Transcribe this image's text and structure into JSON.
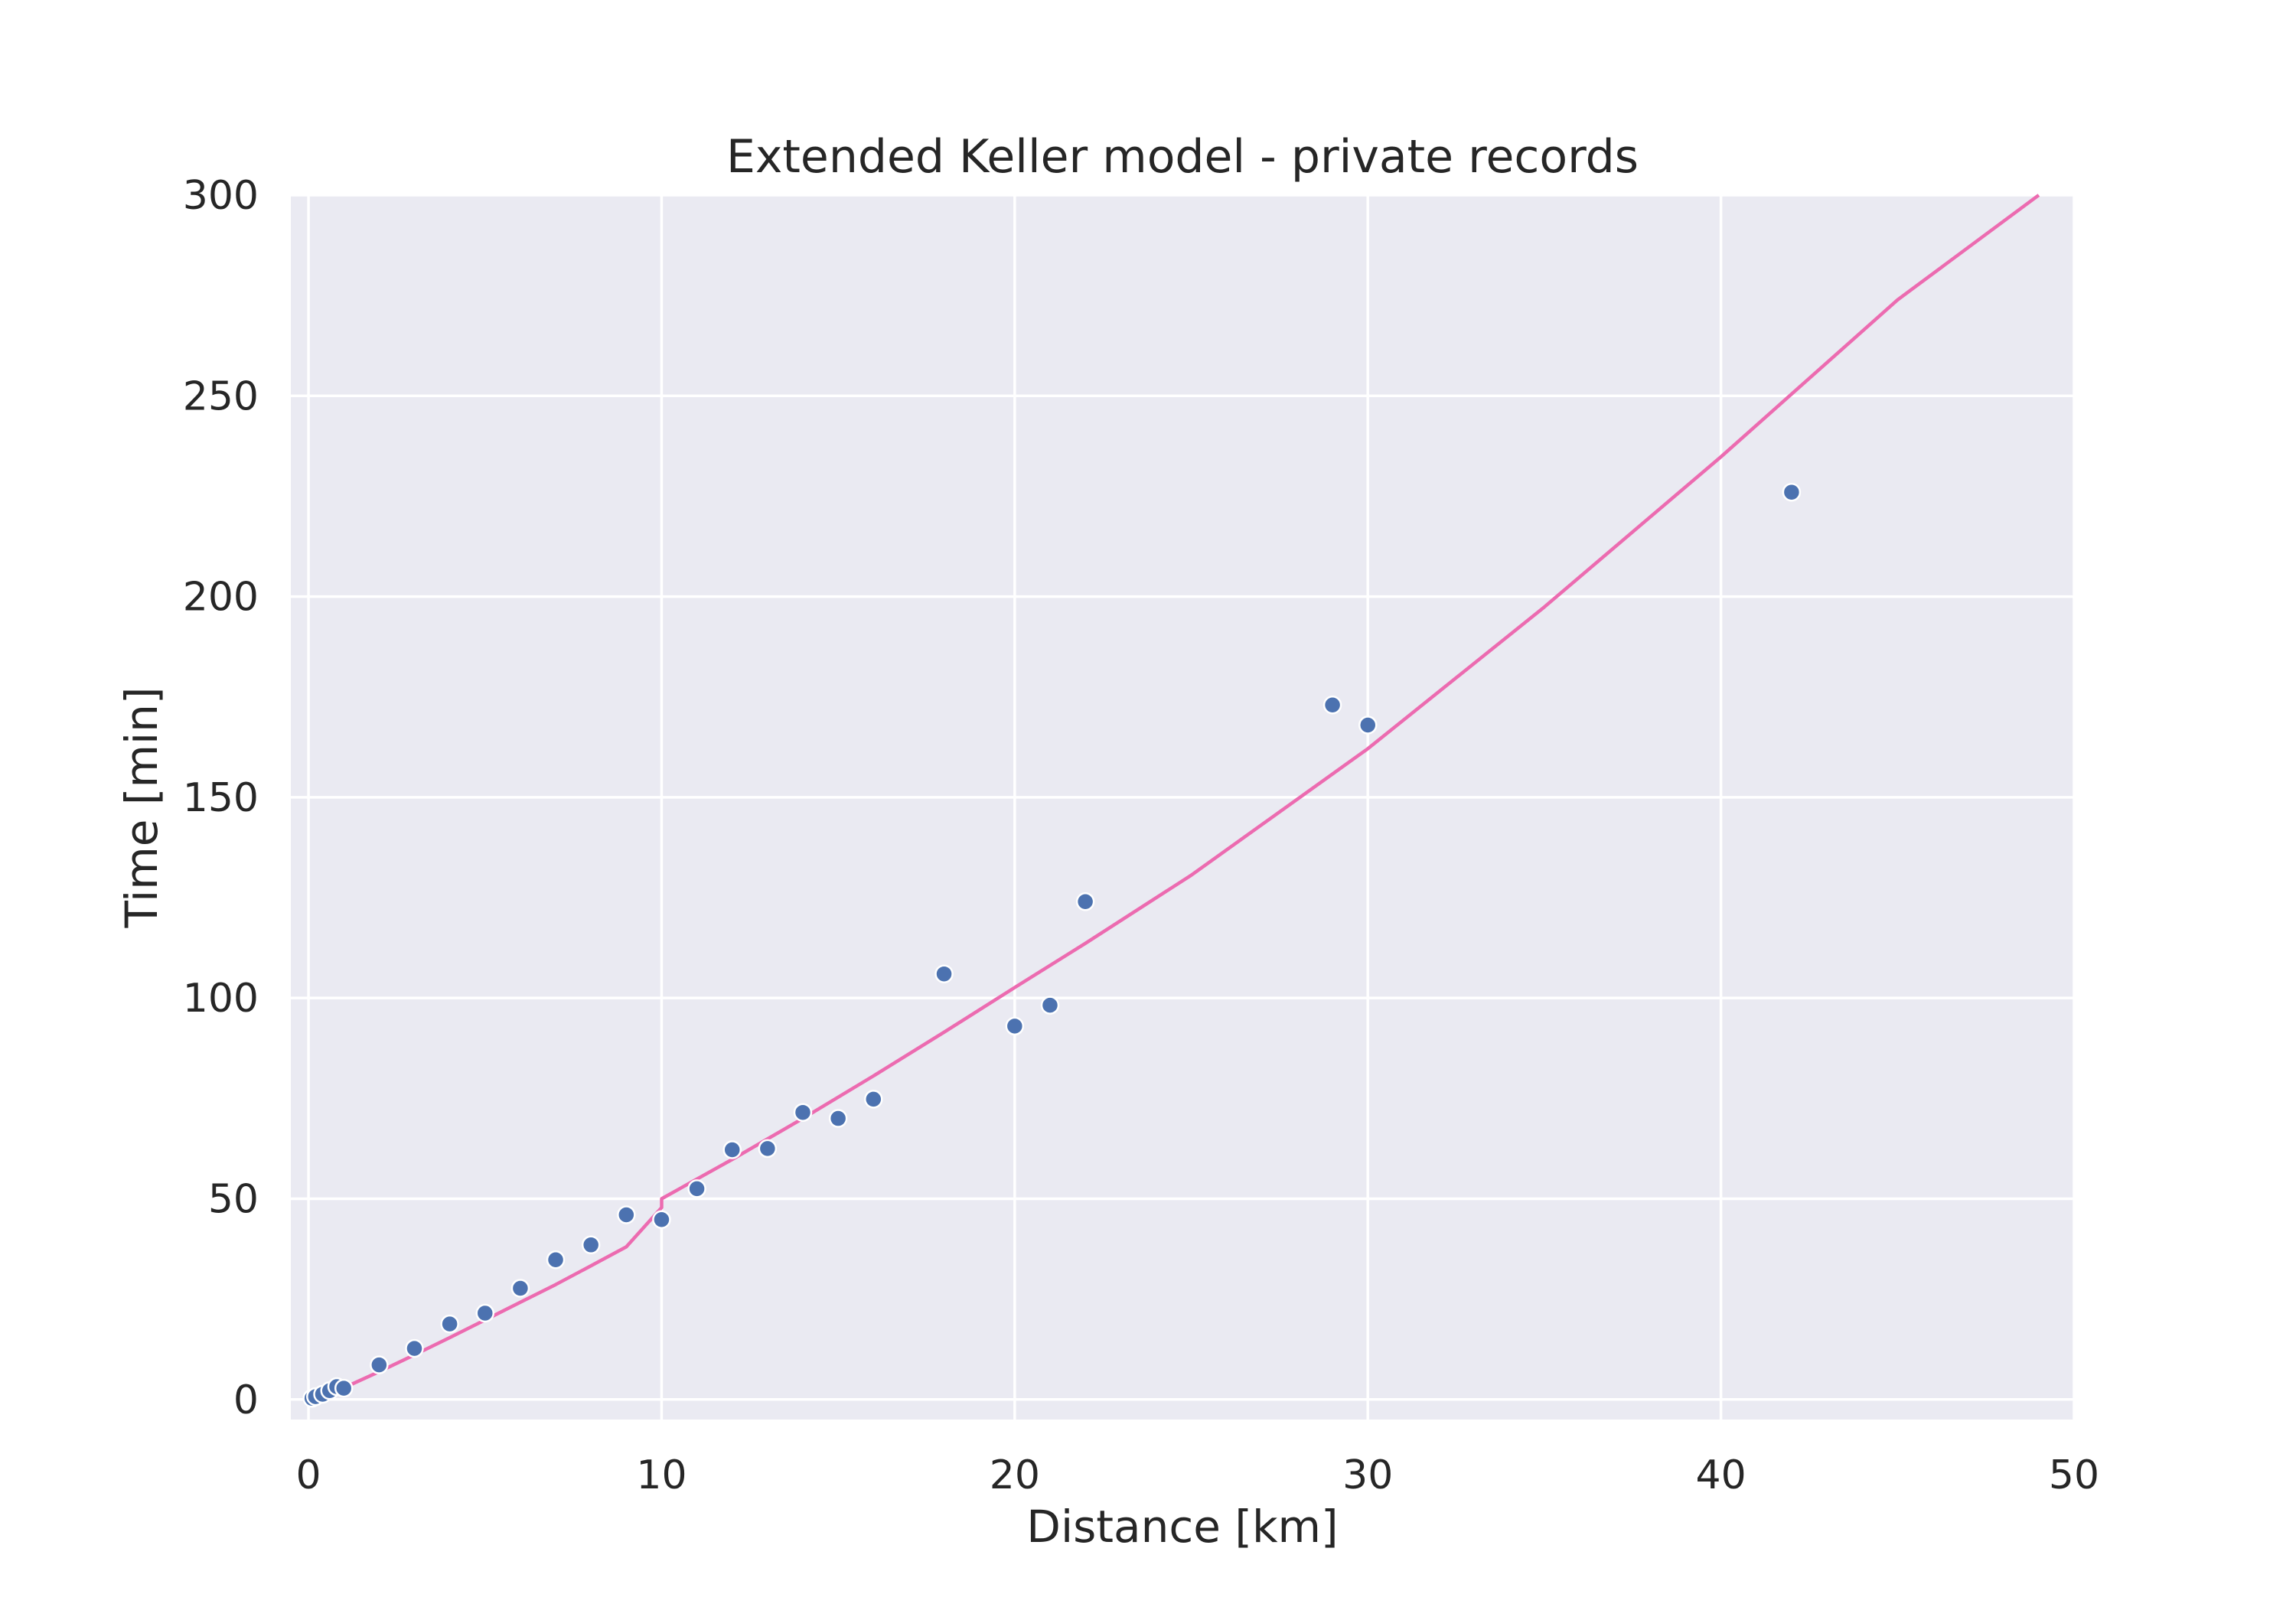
{
  "chart_data": {
    "type": "scatter",
    "title": "Extended Keller model - private records",
    "xlabel": "Distance [km]",
    "ylabel": "Time [min]",
    "xlim": [
      -0.5,
      50
    ],
    "ylim": [
      -5,
      300
    ],
    "xticks": [
      0,
      10,
      20,
      30,
      40,
      50
    ],
    "yticks": [
      0,
      50,
      100,
      150,
      200,
      250,
      300
    ],
    "xtick_labels": [
      "0",
      "10",
      "20",
      "30",
      "40",
      "50"
    ],
    "ytick_labels": [
      "0",
      "50",
      "100",
      "150",
      "200",
      "250",
      "300"
    ],
    "grid": true,
    "background_color": "#eaeaf2",
    "grid_color": "#ffffff",
    "scatter": {
      "color": "#4c72b0",
      "points": [
        {
          "x": 0.1,
          "y": 0.3
        },
        {
          "x": 0.2,
          "y": 0.7
        },
        {
          "x": 0.4,
          "y": 1.3
        },
        {
          "x": 0.6,
          "y": 2.2
        },
        {
          "x": 0.8,
          "y": 3.2
        },
        {
          "x": 1,
          "y": 2.8
        },
        {
          "x": 2,
          "y": 8.6
        },
        {
          "x": 3,
          "y": 12.7
        },
        {
          "x": 4,
          "y": 18.8
        },
        {
          "x": 5,
          "y": 21.5
        },
        {
          "x": 6,
          "y": 27.7
        },
        {
          "x": 7,
          "y": 34.8
        },
        {
          "x": 8,
          "y": 38.5
        },
        {
          "x": 9,
          "y": 46
        },
        {
          "x": 10,
          "y": 44.8
        },
        {
          "x": 11,
          "y": 52.5
        },
        {
          "x": 12,
          "y": 62.2
        },
        {
          "x": 13,
          "y": 62.5
        },
        {
          "x": 14,
          "y": 71.5
        },
        {
          "x": 15,
          "y": 70
        },
        {
          "x": 16,
          "y": 74.8
        },
        {
          "x": 18,
          "y": 106
        },
        {
          "x": 20,
          "y": 93
        },
        {
          "x": 21,
          "y": 98.2
        },
        {
          "x": 22,
          "y": 124
        },
        {
          "x": 29,
          "y": 173
        },
        {
          "x": 30,
          "y": 168
        },
        {
          "x": 42,
          "y": 226
        }
      ]
    },
    "model_line": {
      "color": "#ec6bb0",
      "segments": [
        [
          [
            0,
            0
          ],
          [
            1,
            2.9
          ],
          [
            2,
            6.9
          ],
          [
            3,
            11.1
          ],
          [
            4,
            15.4
          ],
          [
            5,
            19.8
          ],
          [
            6,
            24.2
          ],
          [
            7,
            28.6
          ],
          [
            8,
            33.3
          ],
          [
            9,
            38
          ],
          [
            10,
            47.8
          ]
        ],
        [
          [
            10,
            50
          ],
          [
            12,
            59.8
          ],
          [
            14,
            70
          ],
          [
            16,
            80.6
          ],
          [
            18,
            91.5
          ],
          [
            20,
            102.6
          ],
          [
            22,
            113.6
          ],
          [
            25,
            130.6
          ],
          [
            30,
            162.1
          ],
          [
            35,
            197.4
          ],
          [
            40,
            234.8
          ],
          [
            45,
            273.9
          ],
          [
            49,
            300
          ]
        ]
      ]
    }
  }
}
